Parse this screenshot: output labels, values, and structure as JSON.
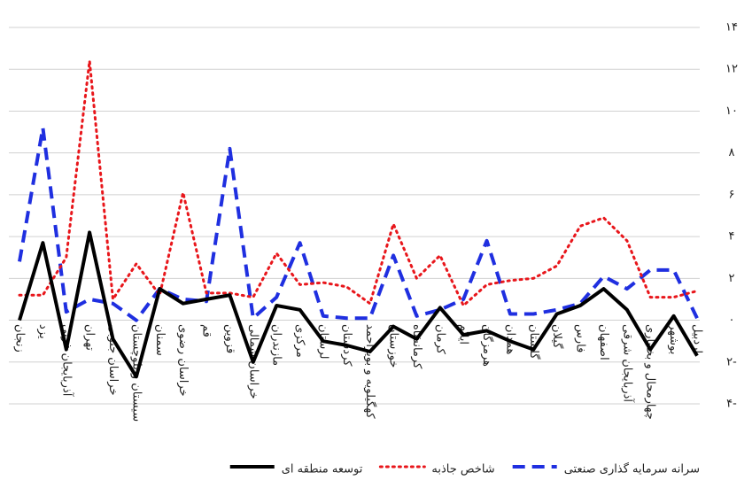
{
  "chart_data": {
    "type": "line",
    "categories": [
      "زنجان",
      "یزد",
      "آذربایجان غربی",
      "تهران",
      "خراسان جنوبی",
      "سیستان و بلوچستان",
      "سمنان",
      "خراسان رضوی",
      "قم",
      "قزوین",
      "خراسان شمالی",
      "مازندران",
      "مرکزی",
      "لرستان",
      "کردستان",
      "کهگیلویه و بویراحمد",
      "خوزستان",
      "کرمانشاه",
      "کرمان",
      "ایلام",
      "هرمزگان",
      "همدان",
      "گلستان",
      "گیلان",
      "فارس",
      "اصفهان",
      "آذربایجان شرقی",
      "چهارمحال و بختیاری",
      "بوشهر",
      "اردبیل"
    ],
    "series": [
      {
        "name": "سرانه سرمایه گذاری صنعتی",
        "color": "#1f2fe0",
        "dash": "dashed",
        "values": [
          2.8,
          9.2,
          0.4,
          1,
          0.8,
          0,
          1.5,
          1,
          0.9,
          8.2,
          0.1,
          1.1,
          3.7,
          0.2,
          0.1,
          0.1,
          3.1,
          0.2,
          0.5,
          1,
          3.8,
          0.3,
          0.3,
          0.5,
          0.8,
          2.1,
          1.5,
          2.4,
          2.4,
          0.1
        ]
      },
      {
        "name": "شاخص جاذبه",
        "color": "#e8161b",
        "dash": "dotted",
        "values": [
          1.2,
          1.2,
          3,
          12.4,
          1,
          2.7,
          1.2,
          6.1,
          1.3,
          1.3,
          1.1,
          3.2,
          1.7,
          1.8,
          1.6,
          0.8,
          4.6,
          2,
          3.1,
          0.7,
          1.7,
          1.9,
          2,
          2.6,
          4.5,
          4.9,
          3.8,
          1.1,
          1.1,
          1.4
        ]
      },
      {
        "name": "توسعه منطقه ای",
        "color": "#000000",
        "dash": "solid",
        "values": [
          0,
          3.7,
          -1.4,
          4.2,
          -0.9,
          -2.7,
          1.5,
          0.8,
          1,
          1.2,
          -2,
          0.7,
          0.5,
          -1,
          -1.2,
          -1.5,
          -0.3,
          -0.9,
          0.6,
          -0.7,
          -0.5,
          -1,
          -1.4,
          0.3,
          0.7,
          1.5,
          0.5,
          -1.4,
          0.2,
          -1.7
        ]
      }
    ],
    "ylim": [
      -4,
      14
    ],
    "yticks": [
      {
        "value": -4,
        "label": "۴-"
      },
      {
        "value": -2,
        "label": "۲-"
      },
      {
        "value": 0,
        "label": "۰"
      },
      {
        "value": 2,
        "label": "۲"
      },
      {
        "value": 4,
        "label": "۴"
      },
      {
        "value": 6,
        "label": "۶"
      },
      {
        "value": 8,
        "label": "۸"
      },
      {
        "value": 10,
        "label": "۱۰"
      },
      {
        "value": 12,
        "label": "۱۲"
      },
      {
        "value": 14,
        "label": "۱۴"
      }
    ],
    "grid": true
  }
}
